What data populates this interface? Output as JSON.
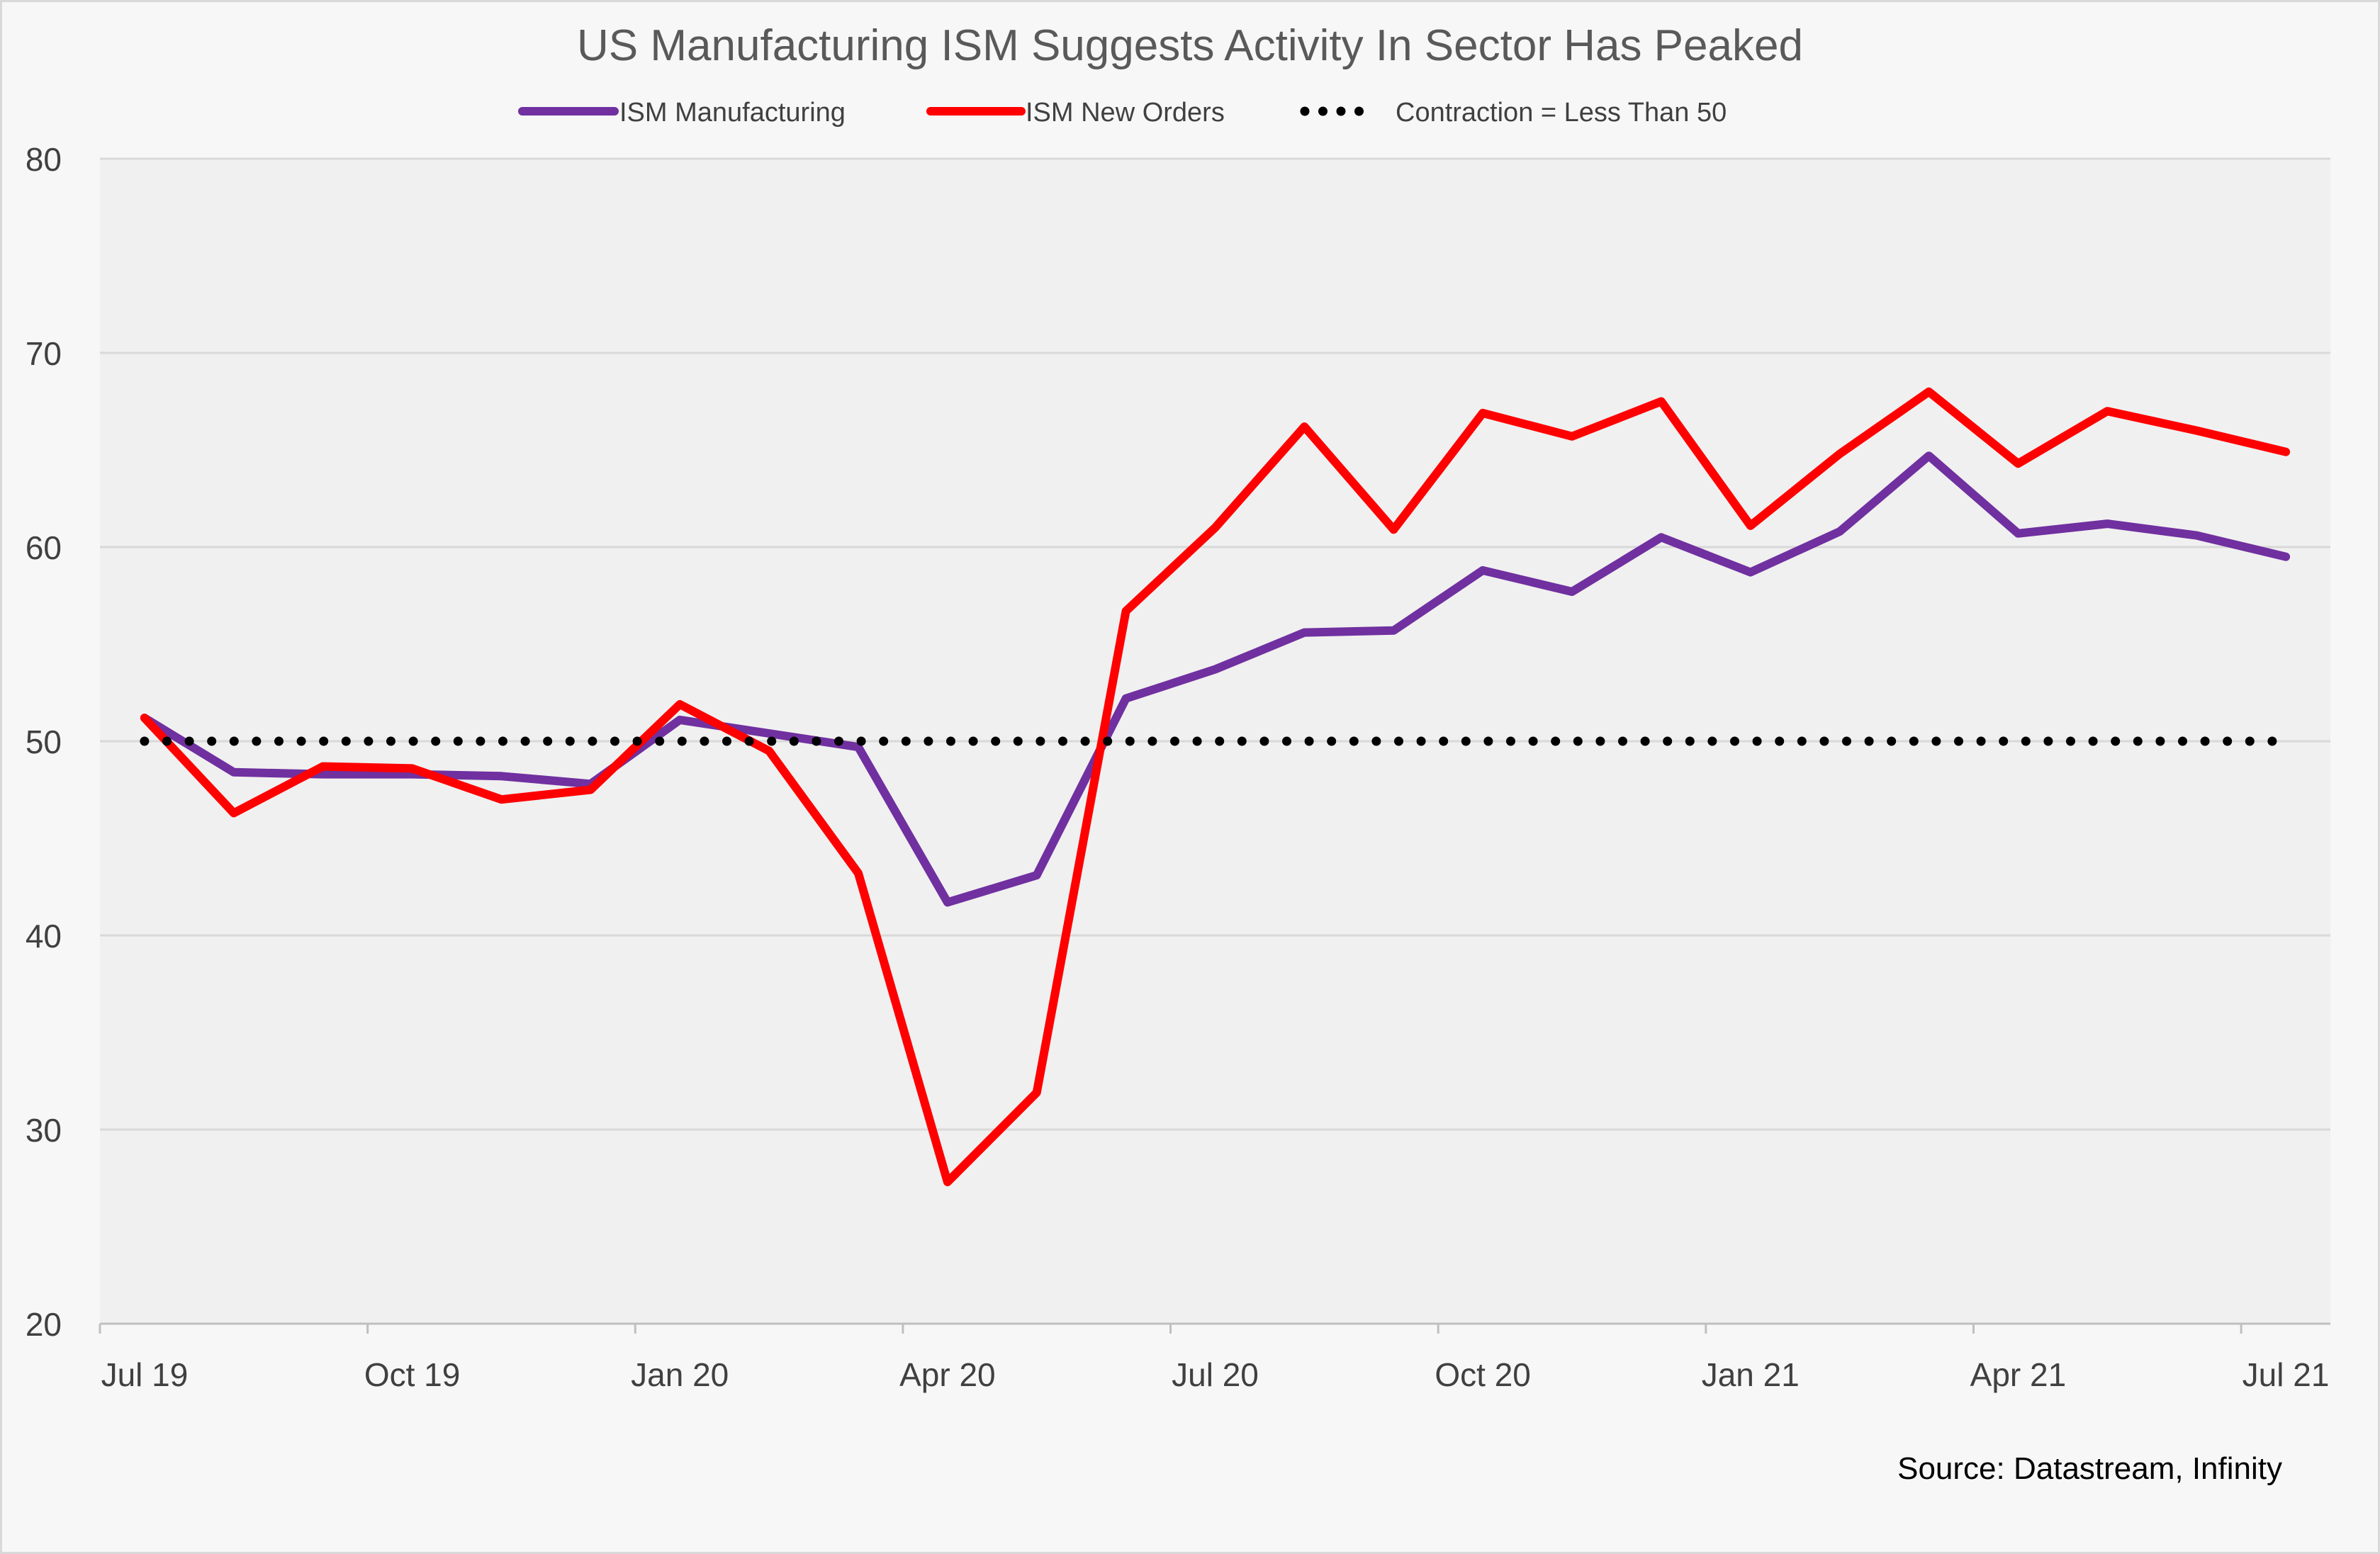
{
  "chart_data": {
    "type": "line",
    "title": "US Manufacturing ISM Suggests Activity In Sector Has Peaked",
    "xlabel": "",
    "ylabel": "",
    "x": [
      "Jul 19",
      "Aug 19",
      "Sep 19",
      "Oct 19",
      "Nov 19",
      "Dec 19",
      "Jan 20",
      "Feb 20",
      "Mar 20",
      "Apr 20",
      "May 20",
      "Jun 20",
      "Jul 20",
      "Aug 20",
      "Sep 20",
      "Oct 20",
      "Nov 20",
      "Dec 20",
      "Jan 21",
      "Feb 21",
      "Mar 21",
      "Apr 21",
      "May 21",
      "Jun 21",
      "Jul 21"
    ],
    "x_tick_labels": [
      "Jul 19",
      "Oct 19",
      "Jan 20",
      "Apr 20",
      "Jul 20",
      "Oct 20",
      "Jan 21",
      "Apr 21",
      "Jul 21"
    ],
    "y_ticks": [
      20,
      30,
      40,
      50,
      60,
      70,
      80
    ],
    "ylim": [
      20,
      80
    ],
    "grid": true,
    "legend_position": "top",
    "series": [
      {
        "name": "ISM Manufacturing",
        "color": "#7030a0",
        "style": "solid",
        "values": [
          51.2,
          48.4,
          48.3,
          48.3,
          48.2,
          47.8,
          51.1,
          50.4,
          49.7,
          41.7,
          43.1,
          52.2,
          53.7,
          55.6,
          55.7,
          58.8,
          57.7,
          60.5,
          58.7,
          60.8,
          64.7,
          60.7,
          61.2,
          60.6,
          59.5
        ]
      },
      {
        "name": "ISM New Orders",
        "color": "#ff0000",
        "style": "solid",
        "values": [
          51.2,
          46.3,
          48.7,
          48.6,
          47.0,
          47.5,
          51.9,
          49.5,
          43.2,
          27.3,
          31.9,
          56.7,
          61.0,
          66.2,
          60.9,
          66.9,
          65.7,
          67.5,
          61.1,
          64.8,
          68.0,
          64.3,
          67.0,
          66.0,
          64.9
        ]
      },
      {
        "name": "Contraction = Less Than 50",
        "color": "#000000",
        "style": "dotted",
        "values": [
          50,
          50,
          50,
          50,
          50,
          50,
          50,
          50,
          50,
          50,
          50,
          50,
          50,
          50,
          50,
          50,
          50,
          50,
          50,
          50,
          50,
          50,
          50,
          50,
          50
        ]
      }
    ],
    "source": "Source: Datastream, Infinity"
  },
  "colors": {
    "plot_background": "#f0f0f0",
    "page_background": "#f7f7f7",
    "gridline": "#d9d9d9"
  }
}
